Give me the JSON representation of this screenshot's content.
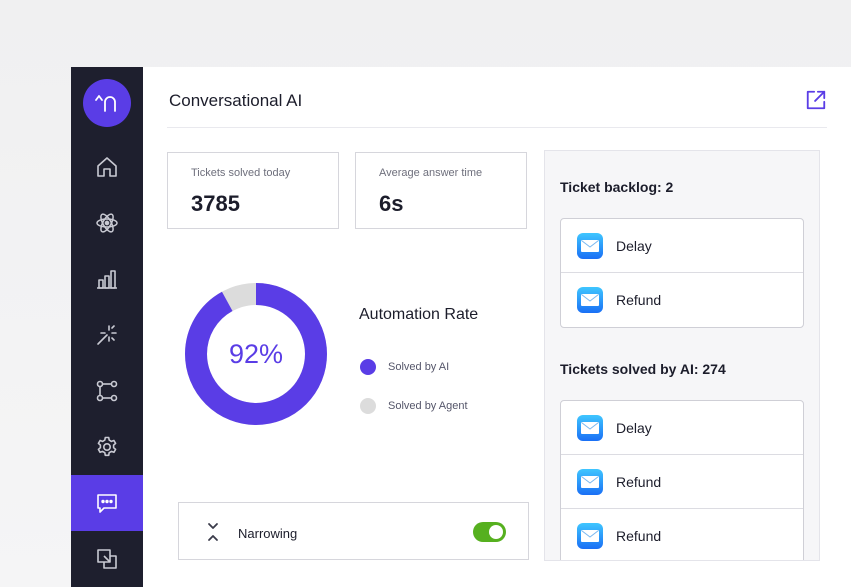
{
  "app": {
    "logo_glyph": "^∩",
    "accent_color": "#5a3de6",
    "sidebar_color": "#1e1f2e"
  },
  "sidebar": {
    "items": [
      {
        "icon": "home-icon",
        "active": false
      },
      {
        "icon": "atom-icon",
        "active": false
      },
      {
        "icon": "bar-chart-icon",
        "active": false
      },
      {
        "icon": "sparkle-icon",
        "active": false
      },
      {
        "icon": "workflow-icon",
        "active": false
      },
      {
        "icon": "gear-icon",
        "active": false
      },
      {
        "icon": "chat-icon",
        "active": true
      },
      {
        "icon": "copy-icon",
        "active": false
      }
    ]
  },
  "header": {
    "title": "Conversational AI",
    "external_icon": "external-link-icon"
  },
  "stats": [
    {
      "label": "Tickets solved today",
      "value": "3785"
    },
    {
      "label": "Average answer time",
      "value": "6s"
    }
  ],
  "automation": {
    "title": "Automation Rate",
    "percent_label": "92%",
    "percent": 92,
    "legend": [
      {
        "label": "Solved by AI",
        "color": "#5a3de6"
      },
      {
        "label": "Solved by Agent",
        "color": "#dcdcdc"
      }
    ]
  },
  "narrowing": {
    "label": "Narrowing",
    "icon": "collapse-arrows-icon",
    "enabled": true,
    "toggle_color": "#56b01f"
  },
  "backlog": {
    "title": "Ticket backlog: 2",
    "items": [
      {
        "label": "Delay",
        "icon": "mail-icon"
      },
      {
        "label": "Refund",
        "icon": "mail-icon"
      }
    ]
  },
  "solved_by_ai": {
    "title": "Tickets solved by AI: 274",
    "items": [
      {
        "label": "Delay",
        "icon": "mail-icon"
      },
      {
        "label": "Refund",
        "icon": "mail-icon"
      },
      {
        "label": "Refund",
        "icon": "mail-icon"
      }
    ]
  }
}
